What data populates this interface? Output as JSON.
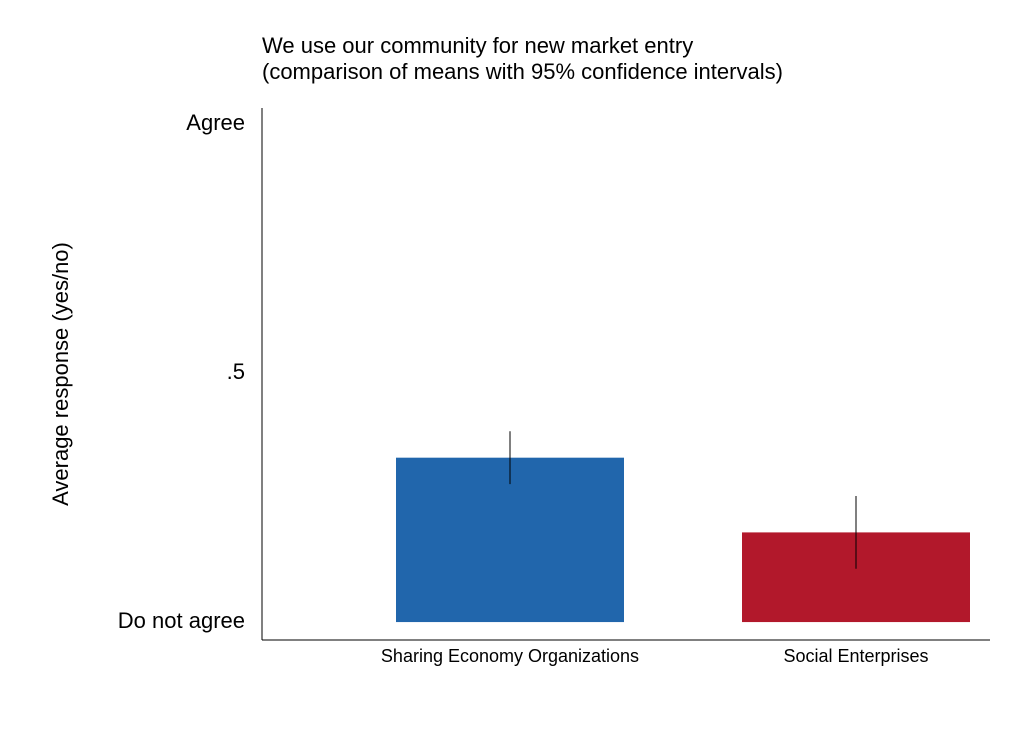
{
  "chart_data": {
    "type": "bar",
    "title": [
      "We use our community for new market entry",
      "(comparison of means with 95% confidence intervals)"
    ],
    "y_label": "Average response (yes/no)",
    "categories": [
      "Sharing Economy Organizations",
      "Social Enterprises"
    ],
    "values": [
      0.33,
      0.18
    ],
    "errors": [
      0.053,
      0.073
    ],
    "colors": [
      "#2166ac",
      "#b2182b"
    ],
    "ylim": [
      -0.036,
      1.032
    ],
    "yticks": [
      {
        "value": 0,
        "label": "Do not agree"
      },
      {
        "value": 0.5,
        "label": ".5"
      },
      {
        "value": 1,
        "label": "Agree"
      }
    ],
    "grid": false
  }
}
